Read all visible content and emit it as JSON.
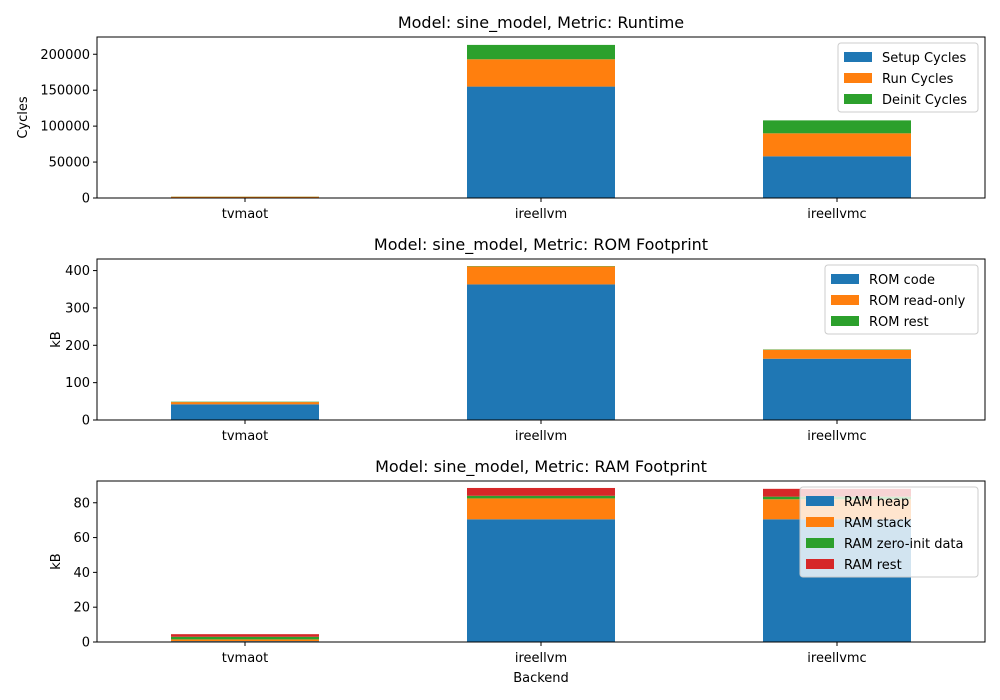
{
  "chart_data": [
    {
      "type": "bar",
      "stacked": true,
      "title": "Model: sine_model, Metric: Runtime",
      "xlabel": "",
      "ylabel": "Cycles",
      "categories": [
        "tvmaot",
        "ireellvm",
        "ireellvmc"
      ],
      "ylim": [
        0,
        224000
      ],
      "yticks": [
        0,
        50000,
        100000,
        150000,
        200000
      ],
      "legend_position": "top-right",
      "series": [
        {
          "name": "Setup Cycles",
          "color": "#1f77b4",
          "values": [
            300,
            155000,
            58000
          ]
        },
        {
          "name": "Run Cycles",
          "color": "#ff7f0e",
          "values": [
            1500,
            38000,
            32000
          ]
        },
        {
          "name": "Deinit Cycles",
          "color": "#2ca02c",
          "values": [
            200,
            20000,
            18000
          ]
        }
      ]
    },
    {
      "type": "bar",
      "stacked": true,
      "title": "Model: sine_model, Metric: ROM Footprint",
      "xlabel": "",
      "ylabel": "kB",
      "categories": [
        "tvmaot",
        "ireellvm",
        "ireellvmc"
      ],
      "ylim": [
        0,
        431
      ],
      "yticks": [
        0,
        100,
        200,
        300,
        400
      ],
      "legend_position": "top-right",
      "series": [
        {
          "name": "ROM code",
          "color": "#1f77b4",
          "values": [
            42,
            363,
            164
          ]
        },
        {
          "name": "ROM read-only",
          "color": "#ff7f0e",
          "values": [
            6,
            48,
            24
          ]
        },
        {
          "name": "ROM rest",
          "color": "#2ca02c",
          "values": [
            1,
            1,
            1
          ]
        }
      ]
    },
    {
      "type": "bar",
      "stacked": true,
      "title": "Model: sine_model, Metric: RAM Footprint",
      "xlabel": "Backend",
      "ylabel": "kB",
      "categories": [
        "tvmaot",
        "ireellvm",
        "ireellvmc"
      ],
      "ylim": [
        0,
        92.5
      ],
      "yticks": [
        0,
        20,
        40,
        60,
        80
      ],
      "legend_position": "top-right",
      "series": [
        {
          "name": "RAM heap",
          "color": "#1f77b4",
          "values": [
            0.5,
            70.5,
            70.5
          ]
        },
        {
          "name": "RAM stack",
          "color": "#ff7f0e",
          "values": [
            1.0,
            12.0,
            11.5
          ]
        },
        {
          "name": "RAM zero-init data",
          "color": "#2ca02c",
          "values": [
            1.5,
            1.5,
            1.5
          ]
        },
        {
          "name": "RAM rest",
          "color": "#d62728",
          "values": [
            1.5,
            4.5,
            4.5
          ]
        }
      ]
    }
  ]
}
